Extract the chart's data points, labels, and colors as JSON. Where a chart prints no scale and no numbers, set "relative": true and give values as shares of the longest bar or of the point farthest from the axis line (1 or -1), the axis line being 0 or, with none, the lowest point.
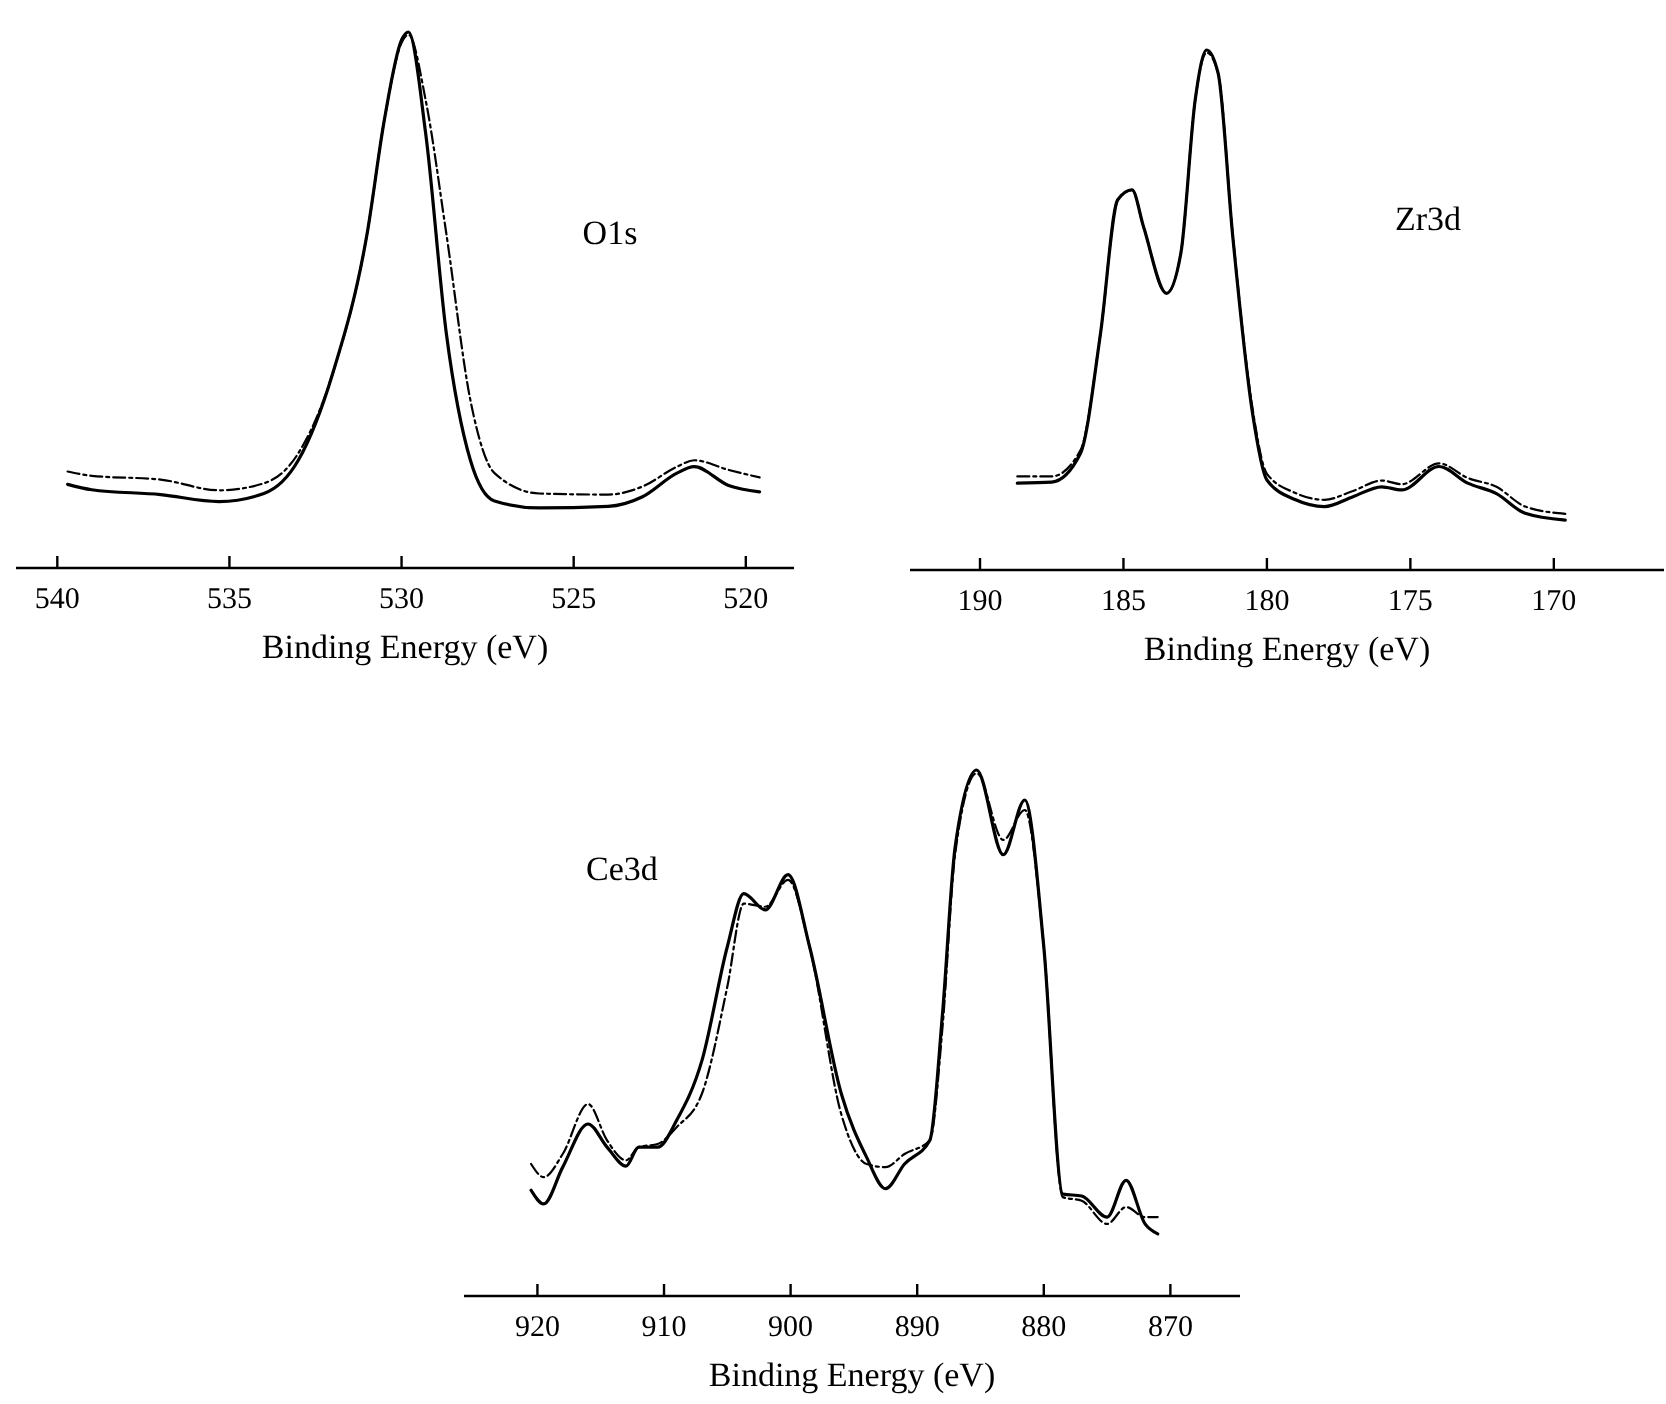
{
  "chart_data": [
    {
      "type": "line",
      "relative": true,
      "xlabel": "Binding Energy (eV)",
      "annotations": [
        "O1s"
      ],
      "xlim": [
        541.2,
        518.6
      ],
      "xticks": [
        540,
        535,
        530,
        525,
        520
      ],
      "grid": false,
      "x": [
        539.7,
        539,
        537,
        535.3,
        534,
        533,
        532,
        531,
        530.5,
        530,
        529.8,
        529.3,
        528.7,
        528,
        527.3,
        526,
        524,
        523,
        522,
        521.5,
        520.5,
        519.6
      ],
      "series": [
        {
          "color": "#000000",
          "line_style": "solid",
          "values": [
            0.156,
            0.146,
            0.137,
            0.124,
            0.139,
            0.201,
            0.363,
            0.624,
            0.836,
            0.985,
            1.0,
            0.811,
            0.438,
            0.201,
            0.125,
            0.112,
            0.115,
            0.133,
            0.177,
            0.189,
            0.154,
            0.142
          ]
        },
        {
          "color": "#000000",
          "line_style": "dashed",
          "values": [
            0.18,
            0.172,
            0.165,
            0.145,
            0.158,
            0.214,
            0.363,
            0.624,
            0.836,
            0.98,
            0.995,
            0.873,
            0.624,
            0.313,
            0.177,
            0.139,
            0.137,
            0.152,
            0.189,
            0.201,
            0.183,
            0.169
          ]
        }
      ]
    },
    {
      "type": "line",
      "relative": true,
      "xlabel": "Binding Energy (eV)",
      "annotations": [
        "Zr3d"
      ],
      "xlim": [
        192.44,
        166.16
      ],
      "xticks": [
        190,
        185,
        180,
        175,
        170
      ],
      "grid": false,
      "x": [
        188.7,
        187.5,
        186.5,
        185.8,
        185.2,
        184.7,
        184.3,
        183.5,
        183,
        182.5,
        182.1,
        181.7,
        181.2,
        180.5,
        180,
        179,
        178,
        177,
        176,
        175.3,
        174,
        173,
        172,
        171,
        169.6
      ],
      "series": [
        {
          "color": "#000000",
          "line_style": "solid",
          "values": [
            0.167,
            0.169,
            0.224,
            0.455,
            0.712,
            0.731,
            0.66,
            0.532,
            0.609,
            0.904,
            1.0,
            0.955,
            0.647,
            0.301,
            0.173,
            0.135,
            0.122,
            0.141,
            0.16,
            0.154,
            0.199,
            0.167,
            0.147,
            0.109,
            0.096
          ]
        },
        {
          "color": "#000000",
          "line_style": "dashed",
          "values": [
            0.18,
            0.18,
            0.23,
            0.455,
            0.712,
            0.731,
            0.66,
            0.532,
            0.609,
            0.904,
            0.995,
            0.955,
            0.65,
            0.31,
            0.185,
            0.148,
            0.135,
            0.152,
            0.172,
            0.165,
            0.205,
            0.177,
            0.16,
            0.122,
            0.108
          ]
        }
      ]
    },
    {
      "type": "line",
      "relative": true,
      "xlabel": "Binding Energy (eV)",
      "annotations": [
        "Ce3d"
      ],
      "xlim": [
        925.8,
        864.5
      ],
      "xticks": [
        920,
        910,
        900,
        890,
        880,
        870
      ],
      "grid": false,
      "x": [
        920.5,
        919.5,
        918,
        916,
        914.5,
        913,
        912,
        910.5,
        909,
        907,
        905,
        903.7,
        902,
        900.2,
        898.5,
        896,
        894,
        892.5,
        891,
        889,
        888,
        887,
        885.3,
        883.2,
        881.5,
        880,
        878.5,
        877,
        875,
        873.5,
        872,
        871
      ],
      "series": [
        {
          "color": "#000000",
          "line_style": "solid",
          "values": [
            0.201,
            0.175,
            0.245,
            0.327,
            0.283,
            0.247,
            0.283,
            0.283,
            0.334,
            0.448,
            0.664,
            0.765,
            0.734,
            0.801,
            0.664,
            0.385,
            0.264,
            0.204,
            0.251,
            0.296,
            0.537,
            0.854,
            1.0,
            0.839,
            0.943,
            0.664,
            0.194,
            0.19,
            0.15,
            0.22,
            0.137,
            0.118
          ]
        },
        {
          "color": "#000000",
          "line_style": "dashed",
          "values": [
            0.251,
            0.226,
            0.27,
            0.365,
            0.296,
            0.258,
            0.283,
            0.289,
            0.321,
            0.385,
            0.588,
            0.746,
            0.74,
            0.791,
            0.664,
            0.346,
            0.251,
            0.245,
            0.27,
            0.296,
            0.511,
            0.841,
            0.994,
            0.867,
            0.924,
            0.664,
            0.188,
            0.181,
            0.137,
            0.169,
            0.15,
            0.15
          ]
        }
      ]
    }
  ]
}
